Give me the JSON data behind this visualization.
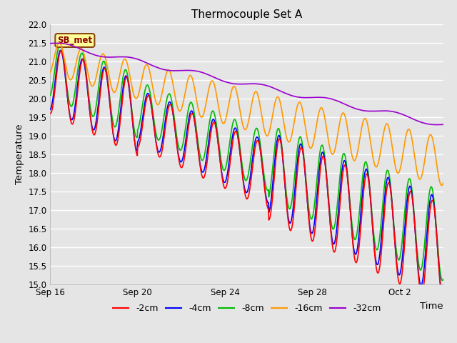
{
  "title": "Thermocouple Set A",
  "xlabel": "Time",
  "ylabel": "Temperature",
  "ylim": [
    15.0,
    22.0
  ],
  "yticks": [
    15.0,
    15.5,
    16.0,
    16.5,
    17.0,
    17.5,
    18.0,
    18.5,
    19.0,
    19.5,
    20.0,
    20.5,
    21.0,
    21.5,
    22.0
  ],
  "background_color": "#e5e5e5",
  "plot_bg_color": "#e5e5e5",
  "grid_color": "#ffffff",
  "annotation_text": "SB_met",
  "annotation_bg": "#ffff99",
  "annotation_border": "#8B4513",
  "colors": {
    "-2cm": "#ff0000",
    "-4cm": "#0000ff",
    "-8cm": "#00bb00",
    "-16cm": "#ff9900",
    "-32cm": "#9900cc"
  },
  "legend_entries": [
    "-2cm",
    "-4cm",
    "-8cm",
    "-16cm",
    "-32cm"
  ],
  "xtick_labels": [
    "Sep 16",
    "Sep 20",
    "Sep 24",
    "Sep 28",
    "Oct 2"
  ],
  "xtick_positions": [
    0,
    4,
    8,
    12,
    16
  ]
}
